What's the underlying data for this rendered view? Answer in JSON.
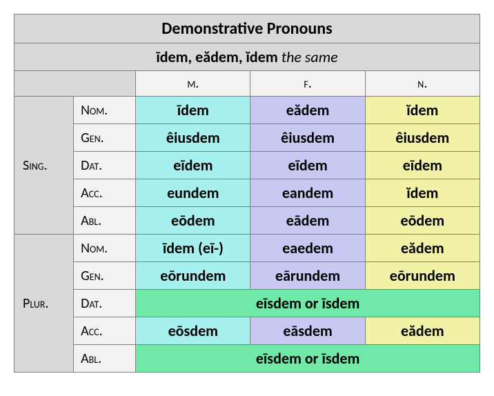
{
  "title": "Demonstrative Pronouns",
  "subtitle_bold": "īdem, eădem, ĭdem",
  "subtitle_italic": "the same",
  "genders": {
    "m": "m.",
    "f": "f.",
    "n": "n."
  },
  "numbers": {
    "sing": "Sing.",
    "plur": "Plur."
  },
  "cases": {
    "nom": "Nom.",
    "gen": "Gen.",
    "dat": "Dat.",
    "acc": "Acc.",
    "abl": "Abl."
  },
  "sing": {
    "nom": {
      "m": "īdem",
      "f": "eădem",
      "n": "ĭdem"
    },
    "gen": {
      "m": "êiusdem",
      "f": "êiusdem",
      "n": "êiusdem"
    },
    "dat": {
      "m": "eīdem",
      "f": "eīdem",
      "n": "eīdem"
    },
    "acc": {
      "m": "eundem",
      "f": "eandem",
      "n": "ĭdem"
    },
    "abl": {
      "m": "eōdem",
      "f": "eādem",
      "n": "eōdem"
    }
  },
  "plur": {
    "nom": {
      "m": "īdem (eī-)",
      "f": "eaedem",
      "n": "eădem"
    },
    "gen": {
      "m": "eōrundem",
      "f": "eārundem",
      "n": "eōrundem"
    },
    "dat_all": "eīsdem or īsdem",
    "acc": {
      "m": "eōsdem",
      "f": "eāsdem",
      "n": "eădem"
    },
    "abl_all": "eīsdem or īsdem"
  },
  "colors": {
    "title_bg": "#d9d9d9",
    "label_bg": "#f2f2f2",
    "m_bg": "#a7f0f0",
    "f_bg": "#c7c9f2",
    "n_bg": "#f2f2a7",
    "all_bg": "#70e8a8",
    "border": "#808080"
  }
}
